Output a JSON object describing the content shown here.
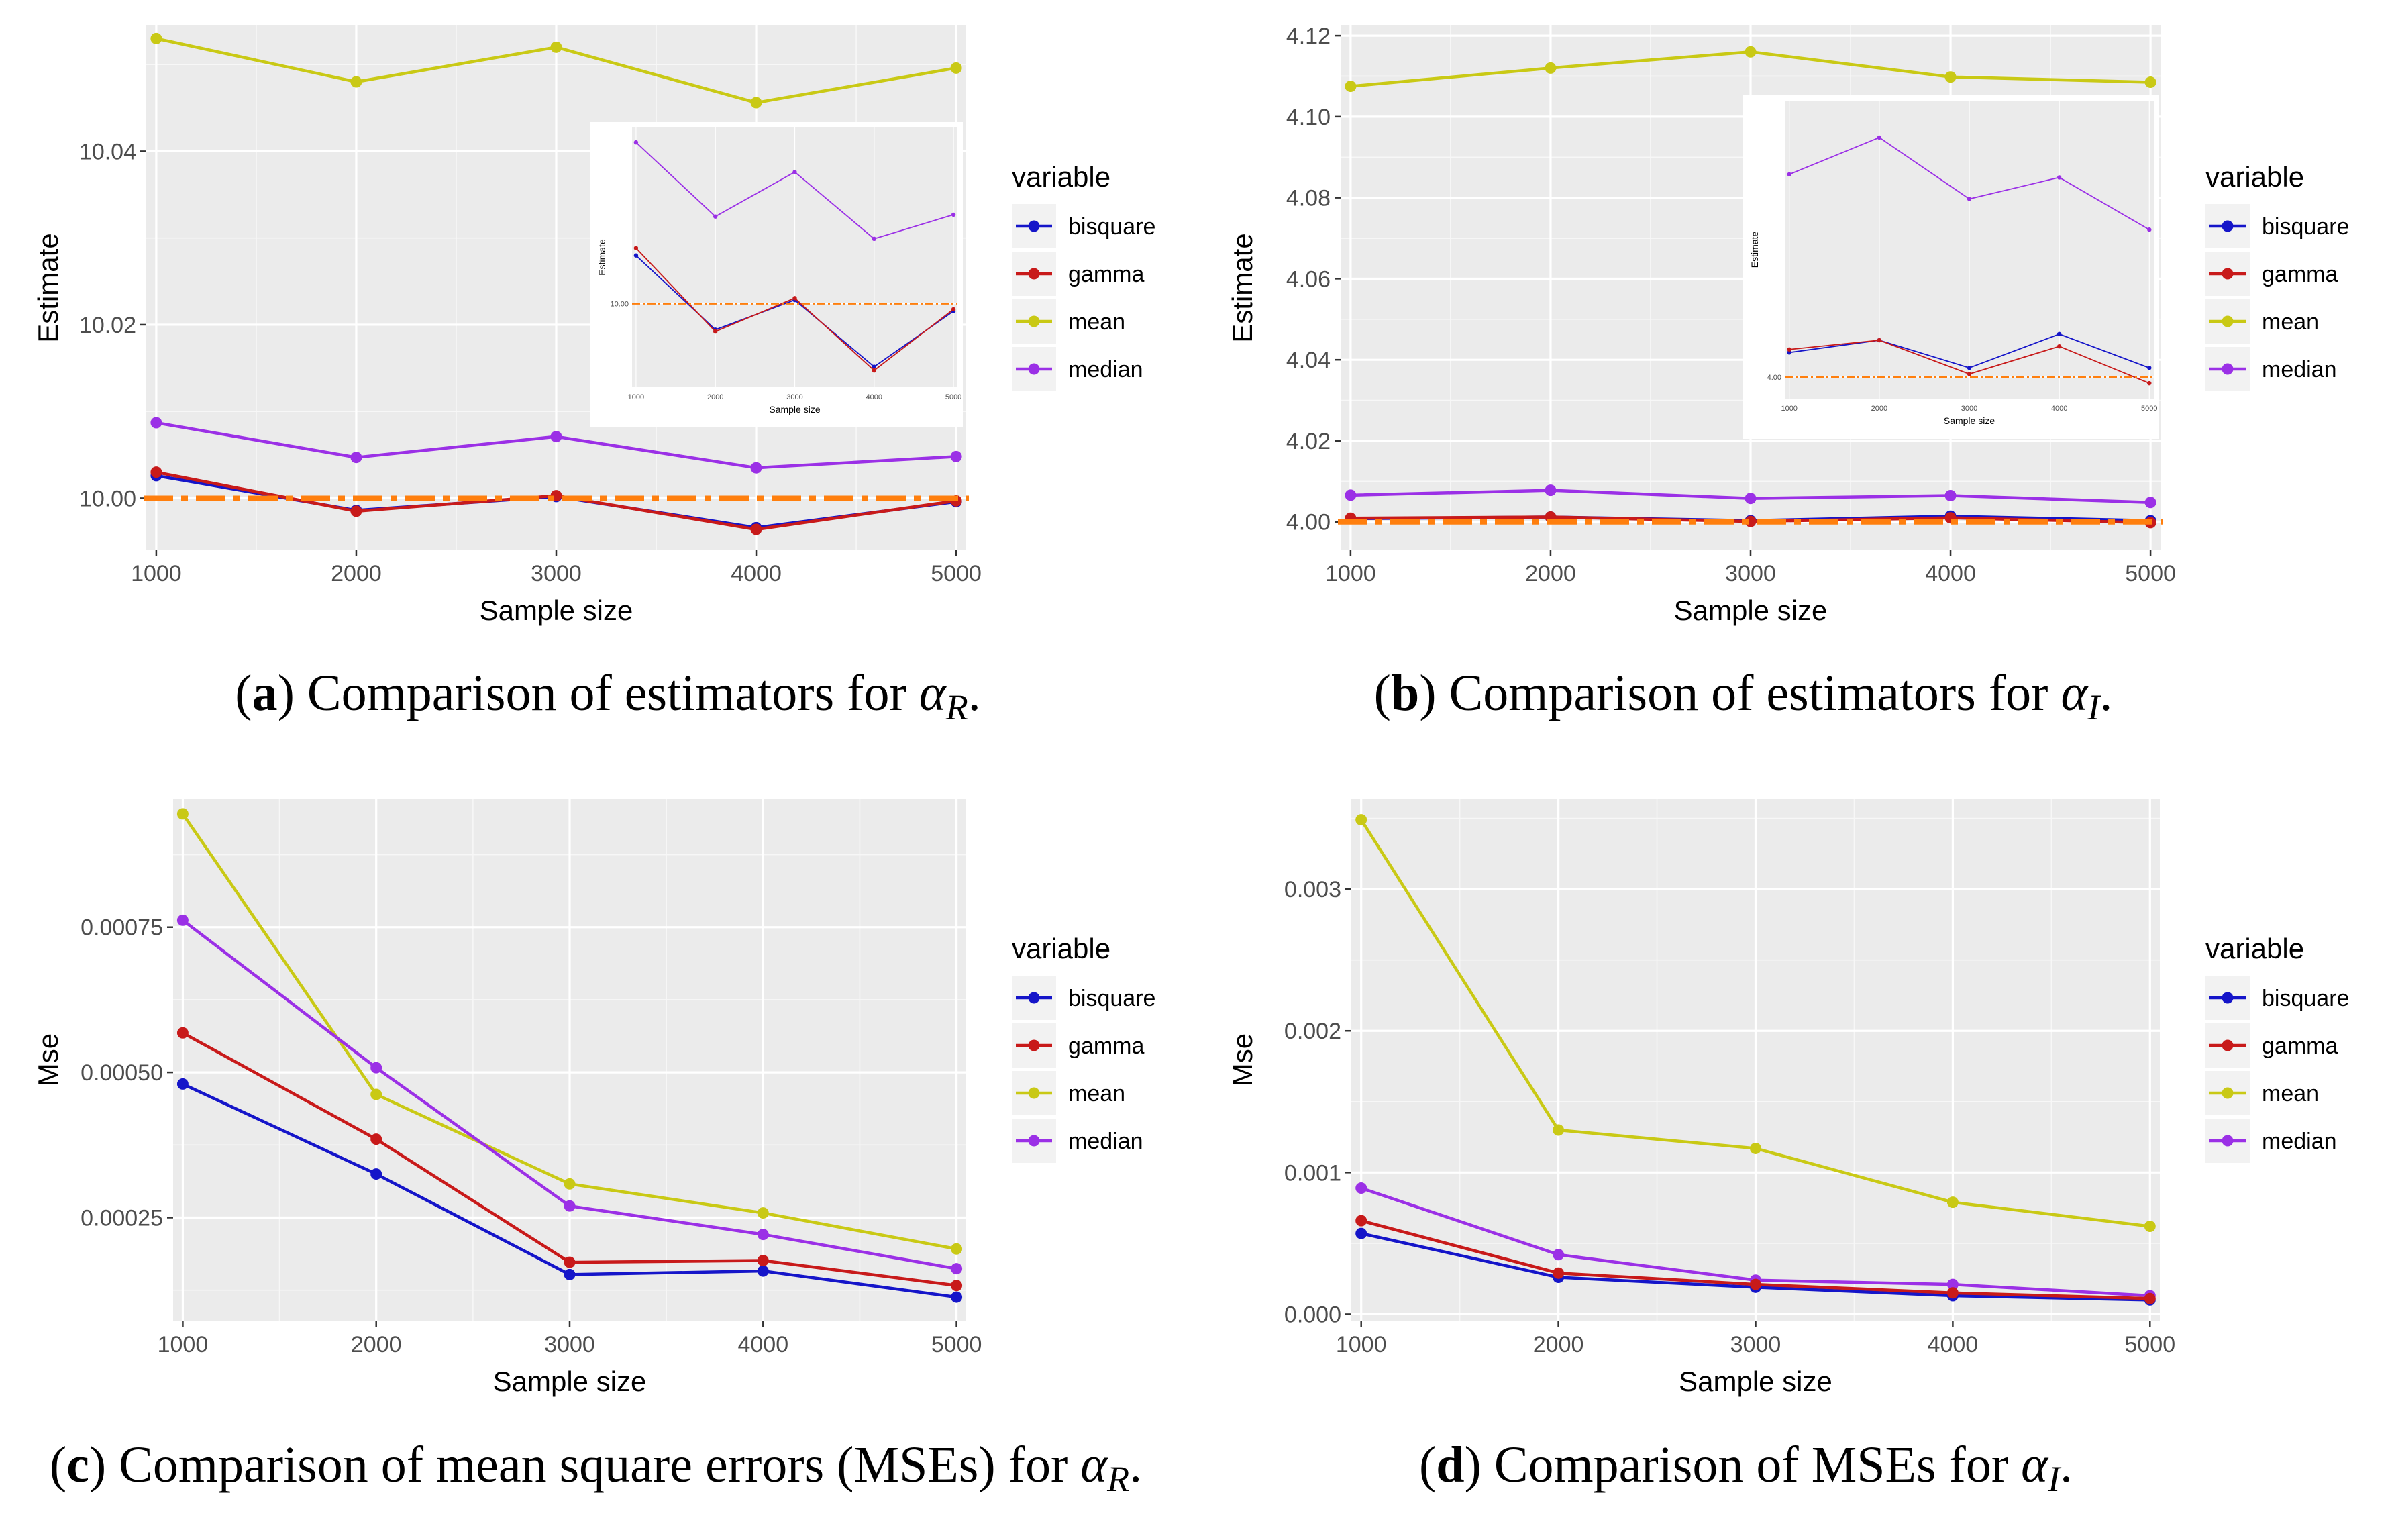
{
  "colors": {
    "bisquare": "#1515c9",
    "gamma": "#c81a1a",
    "mean": "#c9c915",
    "median": "#9b30e6",
    "reference": "#ff7f0e"
  },
  "chart_data": [
    {
      "id": "a",
      "type": "line",
      "x": [
        1000,
        2000,
        3000,
        4000,
        5000
      ],
      "xlabel": "Sample size",
      "ylabel": "Estimate",
      "xlim": [
        950,
        5050
      ],
      "ylim": [
        9.994,
        10.0545
      ],
      "x_ticks": [
        1000,
        2000,
        3000,
        4000,
        5000
      ],
      "y_ticks": [
        10.0,
        10.02,
        10.04
      ],
      "y_tick_labels": [
        "10.00",
        "10.02",
        "10.04"
      ],
      "reference_line": 10.0,
      "legend_title": "variable",
      "series": [
        {
          "name": "bisquare",
          "values": [
            10.0026,
            9.9986,
            10.0002,
            9.9966,
            9.9996
          ]
        },
        {
          "name": "gamma",
          "values": [
            10.003,
            9.9985,
            10.0003,
            9.9964,
            9.9997
          ]
        },
        {
          "name": "mean",
          "values": [
            10.053,
            10.048,
            10.052,
            10.0456,
            10.0496
          ]
        },
        {
          "name": "median",
          "values": [
            10.0087,
            10.0047,
            10.0071,
            10.0035,
            10.0048
          ]
        }
      ],
      "inset": {
        "xlabel": "Sample size",
        "ylabel": "Estimate",
        "ylim": [
          9.9955,
          10.0095
        ],
        "y_ticks": [
          10.0
        ],
        "y_tick_labels": [
          "10.00"
        ],
        "series": [
          "bisquare",
          "gamma",
          "median"
        ]
      },
      "caption": {
        "letter": "a",
        "text": "Comparison of estimators for",
        "symbol": "α",
        "subscript": "R",
        "end": "."
      }
    },
    {
      "id": "b",
      "type": "line",
      "x": [
        1000,
        2000,
        3000,
        4000,
        5000
      ],
      "xlabel": "Sample size",
      "ylabel": "Estimate",
      "xlim": [
        950,
        5050
      ],
      "ylim": [
        3.993,
        4.1225
      ],
      "x_ticks": [
        1000,
        2000,
        3000,
        4000,
        5000
      ],
      "y_ticks": [
        4.0,
        4.02,
        4.04,
        4.06,
        4.08,
        4.1,
        4.12
      ],
      "y_tick_labels": [
        "4.00",
        "4.02",
        "4.04",
        "4.06",
        "4.08",
        "4.10",
        "4.12"
      ],
      "reference_line": 4.0,
      "legend_title": "variable",
      "series": [
        {
          "name": "bisquare",
          "values": [
            4.0008,
            4.0012,
            4.0003,
            4.0014,
            4.0003
          ]
        },
        {
          "name": "gamma",
          "values": [
            4.0009,
            4.0012,
            4.0001,
            4.001,
            3.9998
          ]
        },
        {
          "name": "mean",
          "values": [
            4.1075,
            4.112,
            4.116,
            4.1098,
            4.1085
          ]
        },
        {
          "name": "median",
          "values": [
            4.0066,
            4.0078,
            4.0058,
            4.0065,
            4.0048
          ]
        }
      ],
      "inset": {
        "xlabel": "Sample size",
        "ylabel": "Estimate",
        "ylim": [
          3.9993,
          4.009
        ],
        "y_ticks": [
          4.0
        ],
        "y_tick_labels": [
          "4.00"
        ],
        "series": [
          "bisquare",
          "gamma",
          "median"
        ]
      },
      "caption": {
        "letter": "b",
        "text": "Comparison of estimators for",
        "symbol": "α",
        "subscript": "I",
        "end": "."
      }
    },
    {
      "id": "c",
      "type": "line",
      "x": [
        1000,
        2000,
        3000,
        4000,
        5000
      ],
      "xlabel": "Sample size",
      "ylabel": "Mse",
      "xlim": [
        950,
        5050
      ],
      "ylim": [
        7.15e-05,
        0.0009715
      ],
      "x_ticks": [
        1000,
        2000,
        3000,
        4000,
        5000
      ],
      "y_ticks": [
        0.00025,
        0.0005,
        0.00075
      ],
      "y_tick_labels": [
        "0.00025",
        "0.00050",
        "0.00075"
      ],
      "legend_title": "variable",
      "series": [
        {
          "name": "bisquare",
          "values": [
            0.00048,
            0.000325,
            0.000152,
            0.000158,
            0.000113
          ]
        },
        {
          "name": "gamma",
          "values": [
            0.000568,
            0.000385,
            0.000173,
            0.000176,
            0.000133
          ]
        },
        {
          "name": "mean",
          "values": [
            0.000945,
            0.000462,
            0.000308,
            0.000258,
            0.000196
          ]
        },
        {
          "name": "median",
          "values": [
            0.000762,
            0.000508,
            0.00027,
            0.000221,
            0.000162
          ]
        }
      ],
      "caption": {
        "letter": "c",
        "text": "Comparison of mean square errors (MSEs) for",
        "symbol": "α",
        "subscript": "R",
        "end": "."
      }
    },
    {
      "id": "d",
      "type": "line",
      "x": [
        1000,
        2000,
        3000,
        4000,
        5000
      ],
      "xlabel": "Sample size",
      "ylabel": "Mse",
      "xlim": [
        950,
        5050
      ],
      "ylim": [
        -5e-05,
        0.00364
      ],
      "x_ticks": [
        1000,
        2000,
        3000,
        4000,
        5000
      ],
      "y_ticks": [
        0.0,
        0.001,
        0.002,
        0.003
      ],
      "y_tick_labels": [
        "0.000",
        "0.001",
        "0.002",
        "0.003"
      ],
      "legend_title": "variable",
      "series": [
        {
          "name": "bisquare",
          "values": [
            0.00057,
            0.00026,
            0.00019,
            0.00013,
            0.0001
          ]
        },
        {
          "name": "gamma",
          "values": [
            0.00066,
            0.00029,
            0.00021,
            0.00015,
            0.00011
          ]
        },
        {
          "name": "mean",
          "values": [
            0.00349,
            0.0013,
            0.00117,
            0.00079,
            0.00062
          ]
        },
        {
          "name": "median",
          "values": [
            0.00089,
            0.00042,
            0.00024,
            0.00021,
            0.00013
          ]
        }
      ],
      "caption": {
        "letter": "d",
        "text": "Comparison of MSEs for",
        "symbol": "α",
        "subscript": "I",
        "end": "."
      }
    }
  ]
}
